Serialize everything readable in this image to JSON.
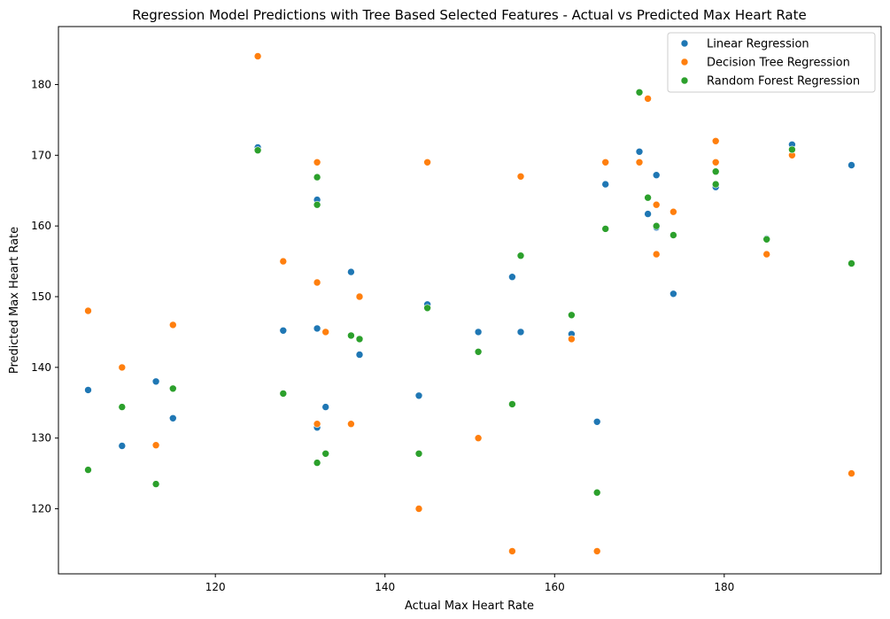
{
  "chart_data": {
    "type": "scatter",
    "title": "Regression Model Predictions with Tree Based Selected Features - Actual vs Predicted Max Heart Rate",
    "xlabel": "Actual Max Heart Rate",
    "ylabel": "Predicted Max Heart Rate",
    "xlim": [
      101.5,
      198.5
    ],
    "ylim": [
      110.8,
      188.2
    ],
    "xticks": [
      120,
      140,
      160,
      180
    ],
    "yticks": [
      120,
      130,
      140,
      150,
      160,
      170,
      180
    ],
    "grid": false,
    "legend_position": "top-right",
    "series": [
      {
        "name": "Linear Regression",
        "color": "#1f77b4",
        "x": [
          105,
          109,
          113,
          115,
          125,
          128,
          132,
          132,
          132,
          133,
          136,
          137,
          144,
          145,
          151,
          155,
          156,
          162,
          165,
          166,
          170,
          171,
          172,
          172,
          174,
          179,
          185,
          188,
          195
        ],
        "y": [
          136.8,
          128.9,
          138.0,
          132.8,
          171.1,
          145.2,
          163.7,
          145.5,
          131.5,
          134.4,
          153.5,
          141.8,
          136.0,
          148.9,
          145.0,
          152.8,
          145.0,
          144.7,
          132.3,
          165.9,
          170.5,
          161.7,
          167.2,
          159.8,
          150.4,
          165.5,
          158.2,
          171.5,
          168.6
        ]
      },
      {
        "name": "Decision Tree Regression",
        "color": "#ff7f0e",
        "x": [
          105,
          109,
          113,
          115,
          125,
          128,
          132,
          132,
          132,
          133,
          136,
          137,
          144,
          145,
          151,
          155,
          156,
          162,
          165,
          166,
          170,
          171,
          172,
          172,
          174,
          179,
          179,
          185,
          188,
          195
        ],
        "y": [
          148.0,
          140.0,
          129.0,
          146.0,
          184.0,
          155.0,
          169.0,
          152.0,
          132.0,
          145.0,
          132.0,
          150.0,
          120.0,
          169.0,
          130.0,
          114.0,
          167.0,
          144.0,
          114.0,
          169.0,
          169.0,
          178.0,
          163.0,
          156.0,
          162.0,
          172.0,
          169.0,
          156.0,
          170.0,
          125.0
        ]
      },
      {
        "name": "Random Forest Regression",
        "color": "#2ca02c",
        "x": [
          105,
          109,
          113,
          115,
          125,
          128,
          132,
          132,
          132,
          133,
          136,
          137,
          144,
          145,
          151,
          155,
          156,
          162,
          165,
          166,
          170,
          171,
          172,
          174,
          179,
          179,
          185,
          188,
          195
        ],
        "y": [
          125.5,
          134.4,
          123.5,
          137.0,
          170.7,
          136.3,
          166.9,
          163.0,
          126.5,
          127.8,
          144.5,
          144.0,
          127.8,
          148.4,
          142.2,
          134.8,
          155.8,
          147.4,
          122.3,
          159.6,
          178.9,
          164.0,
          160.0,
          158.7,
          167.7,
          165.9,
          158.1,
          170.8,
          154.7
        ]
      }
    ]
  }
}
